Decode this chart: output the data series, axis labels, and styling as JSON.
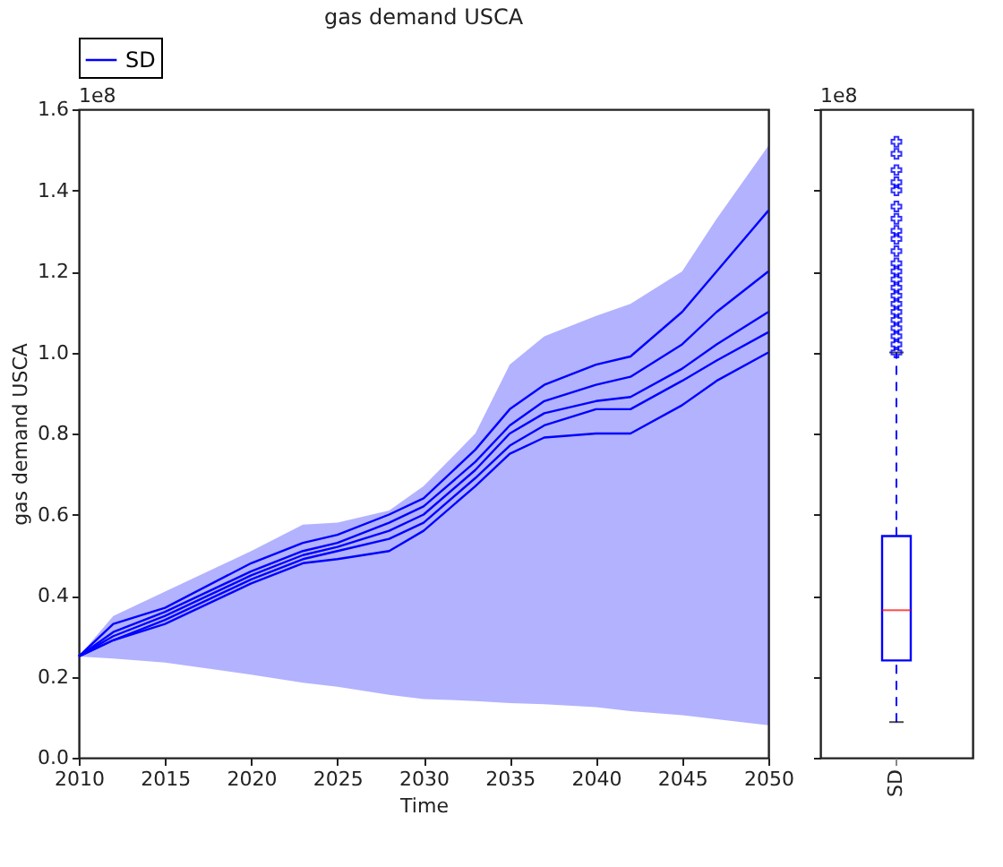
{
  "chart_data": [
    {
      "type": "line",
      "title": "gas demand USCA",
      "xlabel": "Time",
      "ylabel": "gas demand USCA",
      "annotations": [
        "1e8"
      ],
      "legend": "top",
      "grid": false,
      "x": [
        2010,
        2012,
        2015,
        2020,
        2023,
        2025,
        2028,
        2030,
        2033,
        2035,
        2037,
        2040,
        2042,
        2045,
        2047,
        2050
      ],
      "series": [
        {
          "name": "SD",
          "color": "#0000ff",
          "values": [
            0.25,
            0.33,
            0.37,
            0.48,
            0.53,
            0.55,
            0.6,
            0.64,
            0.76,
            0.86,
            0.92,
            0.97,
            0.99,
            1.1,
            1.2,
            1.35
          ],
          "lower": [
            0.25,
            0.245,
            0.235,
            0.205,
            0.185,
            0.175,
            0.155,
            0.145,
            0.14,
            0.135,
            0.132,
            0.125,
            0.115,
            0.105,
            0.095,
            0.08
          ],
          "upper": [
            0.25,
            0.35,
            0.41,
            0.51,
            0.575,
            0.58,
            0.61,
            0.67,
            0.8,
            0.97,
            1.04,
            1.09,
            1.12,
            1.2,
            1.33,
            1.51
          ]
        },
        {
          "color": "#0000ff",
          "values": [
            0.25,
            0.31,
            0.36,
            0.46,
            0.51,
            0.53,
            0.58,
            0.62,
            0.73,
            0.82,
            0.88,
            0.92,
            0.94,
            1.02,
            1.1,
            1.2
          ]
        },
        {
          "color": "#0000ff",
          "values": [
            0.25,
            0.3,
            0.35,
            0.45,
            0.5,
            0.52,
            0.56,
            0.6,
            0.71,
            0.8,
            0.85,
            0.88,
            0.89,
            0.96,
            1.02,
            1.1
          ]
        },
        {
          "color": "#0000ff",
          "values": [
            0.25,
            0.29,
            0.34,
            0.44,
            0.49,
            0.51,
            0.54,
            0.58,
            0.69,
            0.77,
            0.82,
            0.86,
            0.86,
            0.93,
            0.98,
            1.05
          ]
        },
        {
          "color": "#0000ff",
          "values": [
            0.25,
            0.29,
            0.33,
            0.43,
            0.48,
            0.49,
            0.51,
            0.56,
            0.67,
            0.75,
            0.79,
            0.8,
            0.8,
            0.87,
            0.93,
            1.0
          ]
        }
      ],
      "xlim": [
        2010,
        2050
      ],
      "xticks": [
        2010,
        2015,
        2020,
        2025,
        2030,
        2035,
        2040,
        2045,
        2050
      ],
      "ylim": [
        0,
        1.6
      ],
      "yticks": [
        {
          "value": 0,
          "label": "0.0"
        },
        0.2,
        0.4,
        0.6,
        0.8,
        {
          "value": 1,
          "label": "1.0"
        },
        1.2,
        1.4,
        1.6
      ]
    },
    {
      "type": "box",
      "categories": [
        "SD"
      ],
      "annotations": [
        "1e8"
      ],
      "tick_labels": "x",
      "series": [
        {
          "color": "#0000ff",
          "boxes": [
            {
              "low": 0.088,
              "q1": 0.24,
              "median": 0.364,
              "q3": 0.547,
              "high": 1.0,
              "outliers": [
                1.0,
                1.02,
                1.04,
                1.06,
                1.08,
                1.1,
                1.12,
                1.14,
                1.16,
                1.18,
                1.2,
                1.22,
                1.25,
                1.28,
                1.3,
                1.33,
                1.36,
                1.4,
                1.42,
                1.45,
                1.49,
                1.52
              ]
            }
          ]
        }
      ],
      "ylim": [
        0,
        1.6
      ],
      "yticks": [
        {
          "value": 0,
          "label": null
        },
        {
          "value": 0.2,
          "label": null
        },
        {
          "value": 0.4,
          "label": null
        },
        {
          "value": 0.6,
          "label": null
        },
        {
          "value": 0.8,
          "label": null
        },
        {
          "value": 1,
          "label": null
        },
        {
          "value": 1.2,
          "label": null
        },
        {
          "value": 1.4,
          "label": null
        },
        {
          "value": 1.6,
          "label": null
        }
      ]
    }
  ]
}
